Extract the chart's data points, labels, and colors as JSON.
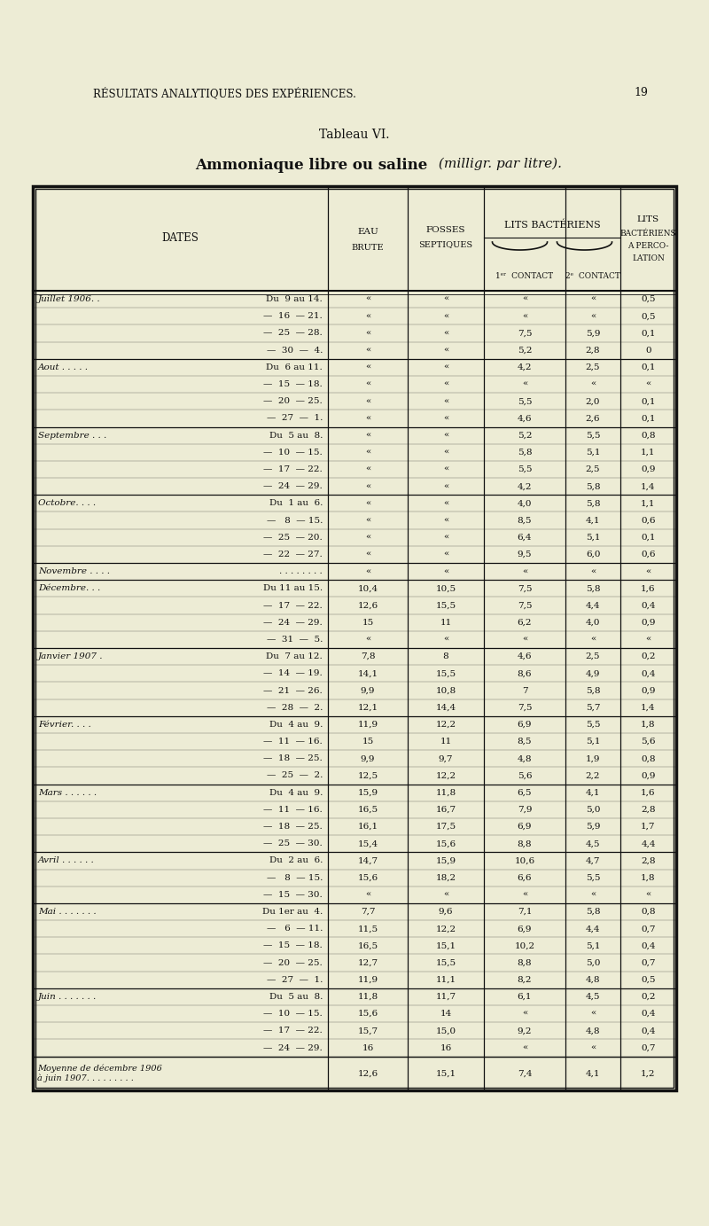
{
  "page_header": "RÉSULTATS ANALYTIQUES DES EXPÉRIENCES.",
  "page_number": "19",
  "table_title": "Tableau VI.",
  "table_subtitle_bold": "Ammoniaque libre ou saline",
  "table_subtitle_italic": " (milligr. par litre).",
  "rows": [
    [
      "Juillet 1906. .",
      "Du  9 au 14.",
      "",
      "",
      "",
      "",
      "0,5"
    ],
    [
      "",
      "—  16  — 21.",
      "",
      "",
      "",
      "",
      "0,5"
    ],
    [
      "",
      "—  25  — 28.",
      "",
      "",
      "7,5",
      "5,9",
      "0,1"
    ],
    [
      "",
      "—  30  —  4.",
      "",
      "",
      "5,2",
      "2,8",
      "0"
    ],
    [
      "Aout . . . . .",
      "Du  6 au 11.",
      "",
      "",
      "4,2",
      "2,5",
      "0,1"
    ],
    [
      "",
      "—  15  — 18.",
      "",
      "",
      "",
      "",
      ""
    ],
    [
      "",
      "—  20  — 25.",
      "",
      "",
      "5,5",
      "2,0",
      "0,1"
    ],
    [
      "",
      "—  27  —  1.",
      "",
      "",
      "4,6",
      "2,6",
      "0,1"
    ],
    [
      "Septembre . . .",
      "Du  5 au  8.",
      "",
      "",
      "5,2",
      "5,5",
      "0,8"
    ],
    [
      "",
      "—  10  — 15.",
      "",
      "",
      "5,8",
      "5,1",
      "1,1"
    ],
    [
      "",
      "—  17  — 22.",
      "",
      "",
      "5,5",
      "2,5",
      "0,9"
    ],
    [
      "",
      "—  24  — 29.",
      "",
      "",
      "4,2",
      "5,8",
      "1,4"
    ],
    [
      "Octobre. . . .",
      "Du  1 au  6.",
      "",
      "",
      "4,0",
      "5,8",
      "1,1"
    ],
    [
      "",
      "—   8  — 15.",
      "",
      "",
      "8,5",
      "4,1",
      "0,6"
    ],
    [
      "",
      "—  25  — 20.",
      "",
      "",
      "6,4",
      "5,1",
      "0,1"
    ],
    [
      "",
      "—  22  — 27.",
      "",
      "",
      "9,5",
      "6,0",
      "0,6"
    ],
    [
      "Novembre . . . .",
      ". . . . . . . .",
      "",
      "",
      "",
      "",
      ""
    ],
    [
      "Décembre. . .",
      "Du 11 au 15.",
      "10,4",
      "10,5",
      "7,5",
      "5,8",
      "1,6"
    ],
    [
      "",
      "—  17  — 22.",
      "12,6",
      "15,5",
      "7,5",
      "4,4",
      "0,4"
    ],
    [
      "",
      "—  24  — 29.",
      "15",
      "11",
      "6,2",
      "4,0",
      "0,9"
    ],
    [
      "",
      "—  31  —  5.",
      "",
      "",
      "",
      "",
      ""
    ],
    [
      "Janvier 1907 .",
      "Du  7 au 12.",
      "7,8",
      "8",
      "4,6",
      "2,5",
      "0,2"
    ],
    [
      "",
      "—  14  — 19.",
      "14,1",
      "15,5",
      "8,6",
      "4,9",
      "0,4"
    ],
    [
      "",
      "—  21  — 26.",
      "9,9",
      "10,8",
      "7",
      "5,8",
      "0,9"
    ],
    [
      "",
      "—  28  —  2.",
      "12,1",
      "14,4",
      "7,5",
      "5,7",
      "1,4"
    ],
    [
      "Février. . . .",
      "Du  4 au  9.",
      "11,9",
      "12,2",
      "6,9",
      "5,5",
      "1,8"
    ],
    [
      "",
      "—  11  — 16.",
      "15",
      "11",
      "8,5",
      "5,1",
      "5,6"
    ],
    [
      "",
      "—  18  — 25.",
      "9,9",
      "9,7",
      "4,8",
      "1,9",
      "0,8"
    ],
    [
      "",
      "—  25  —  2.",
      "12,5",
      "12,2",
      "5,6",
      "2,2",
      "0,9"
    ],
    [
      "Mars . . . . . .",
      "Du  4 au  9.",
      "15,9",
      "11,8",
      "6,5",
      "4,1",
      "1,6"
    ],
    [
      "",
      "—  11  — 16.",
      "16,5",
      "16,7",
      "7,9",
      "5,0",
      "2,8"
    ],
    [
      "",
      "—  18  — 25.",
      "16,1",
      "17,5",
      "6,9",
      "5,9",
      "1,7"
    ],
    [
      "",
      "—  25  — 30.",
      "15,4",
      "15,6",
      "8,8",
      "4,5",
      "4,4"
    ],
    [
      "Avril . . . . . .",
      "Du  2 au  6.",
      "14,7",
      "15,9",
      "10,6",
      "4,7",
      "2,8"
    ],
    [
      "",
      "—   8  — 15.",
      "15,6",
      "18,2",
      "6,6",
      "5,5",
      "1,8"
    ],
    [
      "",
      "—  15  — 30.",
      "",
      "",
      "",
      "",
      ""
    ],
    [
      "Mai . . . . . . .",
      "Du 1er au  4.",
      "7,7",
      "9,6",
      "7,1",
      "5,8",
      "0,8"
    ],
    [
      "",
      "—   6  — 11.",
      "11,5",
      "12,2",
      "6,9",
      "4,4",
      "0,7"
    ],
    [
      "",
      "—  15  — 18.",
      "16,5",
      "15,1",
      "10,2",
      "5,1",
      "0,4"
    ],
    [
      "",
      "—  20  — 25.",
      "12,7",
      "15,5",
      "8,8",
      "5,0",
      "0,7"
    ],
    [
      "",
      "—  27  —  1.",
      "11,9",
      "11,1",
      "8,2",
      "4,8",
      "0,5"
    ],
    [
      "Juin . . . . . . .",
      "Du  5 au  8.",
      "11,8",
      "11,7",
      "6,1",
      "4,5",
      "0,2"
    ],
    [
      "",
      "—  10  — 15.",
      "15,6",
      "14",
      "",
      "",
      "0,4"
    ],
    [
      "",
      "—  17  — 22.",
      "15,7",
      "15,0",
      "9,2",
      "4,8",
      "0,4"
    ],
    [
      "",
      "—  24  — 29.",
      "16",
      "16",
      "",
      "",
      "0,7"
    ],
    [
      "MOYENNE",
      "",
      "12,6",
      "15,1",
      "7,4",
      "4,1",
      "1,2"
    ]
  ],
  "bg_color": "#edecd5",
  "text_color": "#111111",
  "line_color": "#111111"
}
